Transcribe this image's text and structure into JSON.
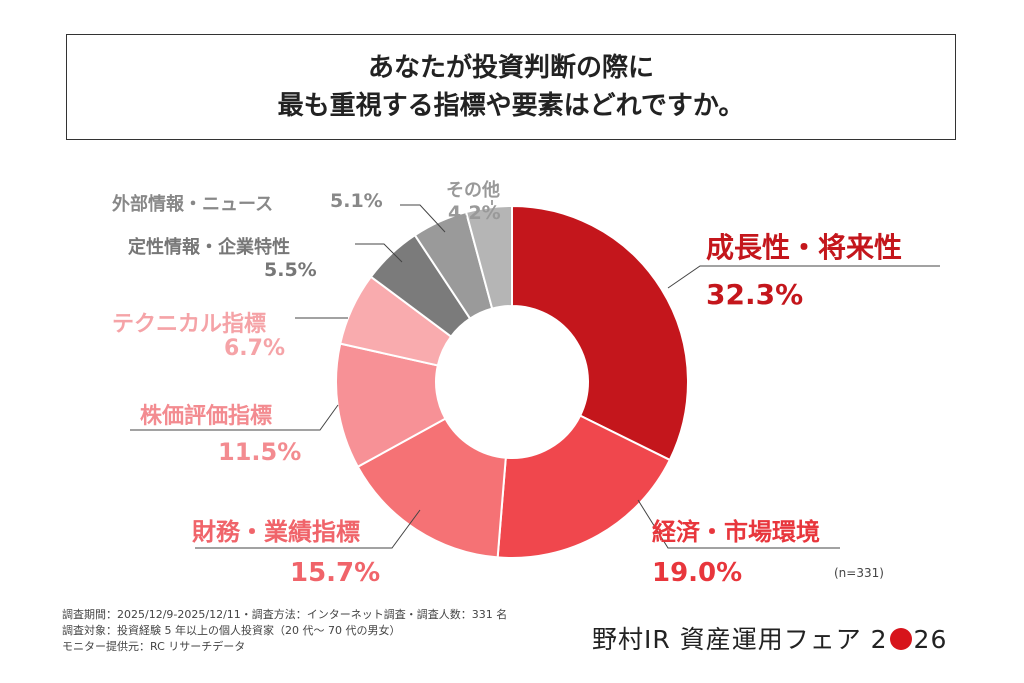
{
  "title": {
    "line1": "あなたが投資判断の際に",
    "line2": "最も重視する指標や要素はどれですか。"
  },
  "chart_data": {
    "type": "pie",
    "donut": true,
    "title": "あなたが投資判断の際に最も重視する指標や要素はどれですか。",
    "slices": [
      {
        "label": "成長性・将来性",
        "value": 32.3,
        "display": "32.3%",
        "color": "#c4161c",
        "text_color": "#c4161c"
      },
      {
        "label": "経済・市場環境",
        "value": 19.0,
        "display": "19.0%",
        "color": "#f0474d",
        "text_color": "#e8363c"
      },
      {
        "label": "財務・業績指標",
        "value": 15.7,
        "display": "15.7%",
        "color": "#f57275",
        "text_color": "#f0646a"
      },
      {
        "label": "株価評価指標",
        "value": 11.5,
        "display": "11.5%",
        "color": "#f79196",
        "text_color": "#f38b90"
      },
      {
        "label": "テクニカル指標",
        "value": 6.7,
        "display": "6.7%",
        "color": "#f9abae",
        "text_color": "#f5a3a7"
      },
      {
        "label": "定性情報・企業特性",
        "value": 5.5,
        "display": "5.5%",
        "color": "#7b7b7b",
        "text_color": "#777777"
      },
      {
        "label": "外部情報・ニュース",
        "value": 5.1,
        "display": "5.1%",
        "color": "#9a9a9a",
        "text_color": "#888888"
      },
      {
        "label": "その他",
        "value": 4.2,
        "display": "4.2%",
        "color": "#b5b5b5",
        "text_color": "#999999"
      }
    ]
  },
  "sample": "(n=331)",
  "footnotes": [
    "調査期間：2025/12/9-2025/12/11・調査方法：インターネット調査・調査人数：331 名",
    "調査対象：投資経験 5 年以上の個人投資家（20 代～ 70 代の男女）",
    "モニター提供元：RC リサーチデータ"
  ],
  "logo": {
    "text1": "野村IR 資産運用フェア 2",
    "text2": "26"
  }
}
